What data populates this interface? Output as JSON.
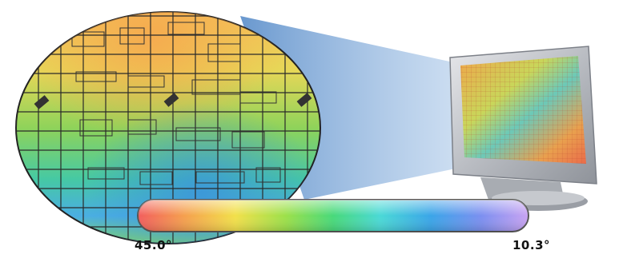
{
  "scale": {
    "min_label": "45.0°",
    "max_label": "10.3°",
    "gradient_colors": [
      "#f25d5d",
      "#f5a04e",
      "#f2e04a",
      "#9be04a",
      "#48d97a",
      "#4ad9d6",
      "#3aa5e8",
      "#7c8ff0",
      "#c9a3f2"
    ]
  },
  "icons": {
    "wafer": "thermal-wafer-icon",
    "monitor": "monitor-icon",
    "beam": "magnification-beam"
  }
}
